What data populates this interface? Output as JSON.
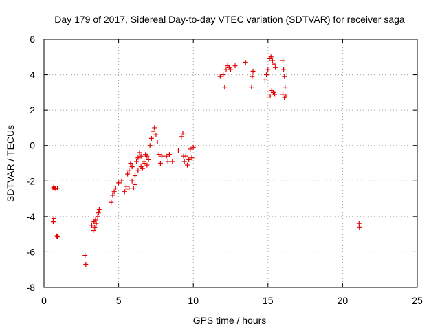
{
  "chart_data": {
    "type": "scatter",
    "title": "Day 179 of 2017, Sidereal Day-to-day VTEC variation (SDTVAR) for receiver saga",
    "xlabel": "GPS time / hours",
    "ylabel": "SDTVAR / TECUs",
    "xlim": [
      0,
      25
    ],
    "ylim": [
      -8,
      6
    ],
    "xticks": [
      0,
      5,
      10,
      15,
      20,
      25
    ],
    "yticks": [
      -8,
      -6,
      -4,
      -2,
      0,
      2,
      4,
      6
    ],
    "grid": true,
    "marker": "plus",
    "colors": {
      "series": "#e00000"
    },
    "series": [
      {
        "x": [
          0.6,
          0.65,
          0.7,
          0.75,
          0.8,
          0.9,
          0.62,
          0.66,
          0.85,
          0.9,
          2.75,
          2.8,
          3.2,
          3.3,
          3.35,
          3.4,
          3.45,
          3.5,
          3.6,
          3.65,
          3.7,
          4.5,
          4.6,
          4.7,
          4.8,
          5.0,
          5.2,
          5.4,
          5.5,
          5.6,
          5.7,
          5.8,
          5.9,
          6.0,
          6.1,
          6.2,
          6.3,
          6.4,
          6.5,
          6.6,
          6.7,
          6.8,
          6.9,
          7.0,
          7.1,
          7.2,
          7.3,
          7.4,
          7.5,
          7.6,
          7.7,
          7.8,
          7.9,
          5.5,
          5.7,
          5.9,
          6.1,
          6.3,
          6.5,
          6.7,
          6.9,
          8.2,
          8.3,
          8.4,
          8.6,
          9.0,
          9.2,
          9.3,
          9.35,
          9.4,
          9.5,
          9.6,
          9.7,
          9.8,
          9.9,
          10.0,
          11.8,
          12.0,
          12.1,
          12.2,
          12.3,
          12.4,
          12.5,
          12.8,
          13.5,
          13.9,
          13.95,
          14.0,
          14.8,
          14.9,
          15.0,
          15.1,
          15.2,
          15.3,
          15.4,
          15.5,
          15.15,
          15.25,
          15.35,
          15.45,
          16.0,
          16.05,
          16.1,
          16.15,
          16.2,
          16.0,
          16.1,
          21.1,
          21.12
        ],
        "y": [
          -2.4,
          -2.35,
          -2.4,
          -2.4,
          -2.45,
          -2.4,
          -4.3,
          -4.1,
          -5.1,
          -5.15,
          -6.2,
          -6.7,
          -4.5,
          -4.8,
          -4.3,
          -4.6,
          -4.2,
          -4.4,
          -4.0,
          -3.8,
          -3.6,
          -3.2,
          -2.8,
          -2.6,
          -2.4,
          -2.1,
          -2.0,
          -2.6,
          -2.3,
          -1.6,
          -1.4,
          -1.0,
          -1.2,
          -2.4,
          -2.2,
          -0.9,
          -0.7,
          -0.4,
          -0.6,
          -1.3,
          -0.9,
          -0.5,
          -0.6,
          -0.8,
          0.0,
          0.4,
          0.8,
          1.0,
          0.6,
          0.2,
          -0.5,
          -1.0,
          -0.6,
          -2.5,
          -2.4,
          -2.0,
          -1.7,
          -1.4,
          -1.2,
          -1.0,
          -1.1,
          -0.6,
          -0.9,
          -0.5,
          -0.9,
          -0.3,
          0.5,
          0.7,
          -0.6,
          -0.9,
          -0.6,
          -1.1,
          -0.8,
          -0.2,
          -0.7,
          -0.1,
          3.9,
          4.0,
          3.3,
          4.3,
          4.5,
          4.4,
          4.3,
          4.5,
          4.7,
          3.3,
          3.9,
          4.2,
          3.7,
          4.0,
          4.3,
          4.9,
          5.0,
          4.8,
          4.6,
          4.4,
          2.8,
          3.1,
          3.0,
          2.9,
          4.8,
          4.3,
          3.9,
          3.3,
          2.8,
          2.9,
          2.7,
          -4.4,
          -4.6
        ]
      }
    ]
  }
}
